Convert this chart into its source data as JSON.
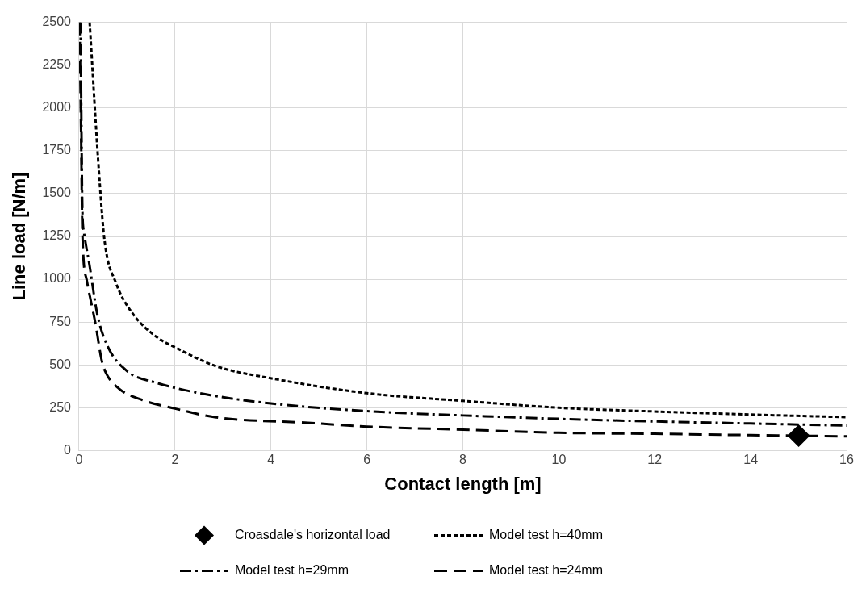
{
  "chart_data": {
    "type": "line",
    "xlabel": "Contact length [m]",
    "ylabel": "Line load [N/m]",
    "xlim": [
      0,
      16
    ],
    "xticks": [
      0,
      2,
      4,
      6,
      8,
      10,
      12,
      14,
      16
    ],
    "ylim": [
      0,
      2500
    ],
    "yticks": [
      0,
      250,
      500,
      750,
      1000,
      1250,
      1500,
      1750,
      2000,
      2250,
      2500
    ],
    "grid": true,
    "legend": "bottom",
    "series": [
      {
        "name": "Croasdale's horizontal load",
        "type": "scatter",
        "marker": "diamond",
        "color": "#000000",
        "x": [
          15
        ],
        "values": [
          87
        ]
      },
      {
        "name": "Model test h=40mm",
        "type": "line",
        "line_style": "dotted",
        "color": "#000000",
        "x": [
          0.22,
          0.41,
          0.53,
          0.77,
          1.13,
          1.62,
          2,
          2.83,
          4.04,
          6,
          8,
          10,
          12,
          14,
          16
        ],
        "values": [
          2500,
          1645,
          1228,
          978,
          795,
          662,
          603,
          495,
          420,
          335,
          290,
          250,
          228,
          210,
          195
        ]
      },
      {
        "name": "Model test h=29mm",
        "type": "line",
        "line_style": "dashdot",
        "color": "#000000",
        "x": [
          0.03,
          0.07,
          0.1,
          0.22,
          0.38,
          0.59,
          1.01,
          1.62,
          2.65,
          4,
          6,
          8,
          10,
          12,
          14,
          16
        ],
        "values": [
          2500,
          1395,
          1278,
          1078,
          795,
          612,
          462,
          395,
          328,
          275,
          230,
          205,
          185,
          170,
          158,
          146
        ]
      },
      {
        "name": "Model test h=24mm",
        "type": "line",
        "line_style": "dashed",
        "color": "#000000",
        "x": [
          0.01,
          0.04,
          0.07,
          0.16,
          0.35,
          0.47,
          0.56,
          0.83,
          1.32,
          2,
          2.83,
          4.77,
          6,
          8,
          10,
          12,
          14,
          16
        ],
        "values": [
          2500,
          1895,
          1262,
          995,
          728,
          528,
          453,
          362,
          295,
          245,
          195,
          162,
          140,
          122,
          104,
          98,
          90,
          83
        ]
      }
    ]
  }
}
